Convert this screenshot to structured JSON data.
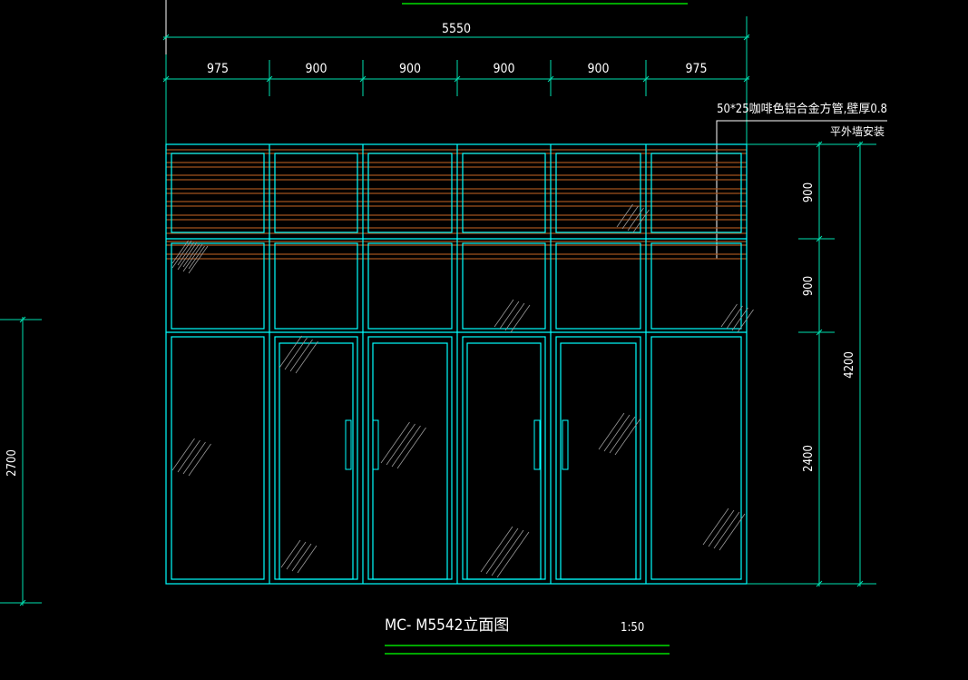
{
  "colors": {
    "background": "#000000",
    "frame": "#00ffff",
    "dimension": "#00e0b0",
    "louver": "#a0521e",
    "title_underline": "#00ff00",
    "glass_hatch": "#9a9a9a",
    "text": "#ffffff"
  },
  "dimensions": {
    "overall_width": "5550",
    "segments": [
      "975",
      "900",
      "900",
      "900",
      "900",
      "975"
    ],
    "right_heights": [
      "900",
      "900",
      "2400"
    ],
    "overall_height": "4200",
    "left_height": "2700"
  },
  "annotation": {
    "material": "50*25咖啡色铝合金方管,壁厚0.8",
    "install": "平外墙安装"
  },
  "title": {
    "name": "MC- M5542立面图",
    "scale": "1:50"
  }
}
